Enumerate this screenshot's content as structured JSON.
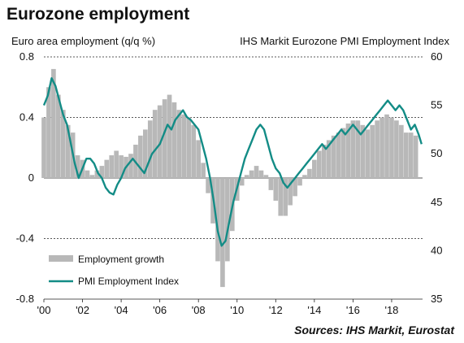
{
  "chart_data": {
    "type": "bar+line",
    "title": "Eurozone employment",
    "left_axis": {
      "label": "Euro area employment (q/q %)",
      "ylim": [
        -0.8,
        0.8
      ],
      "ticks": [
        "0.8",
        "0.4",
        "0",
        "-0.4",
        "-0.8"
      ]
    },
    "right_axis": {
      "label": "IHS Markit  Eurozone PMI Employment Index",
      "ylim": [
        35,
        60
      ],
      "ticks": [
        "60",
        "55",
        "50",
        "45",
        "40",
        "35"
      ]
    },
    "x_axis": {
      "range": [
        2000,
        2019.6
      ],
      "tick_labels": [
        "'00",
        "'02",
        "'04",
        "'06",
        "'08",
        "'10",
        "'12",
        "'14",
        "'16",
        "'18"
      ],
      "tick_years": [
        2000,
        2002,
        2004,
        2006,
        2008,
        2010,
        2012,
        2014,
        2016,
        2018
      ]
    },
    "grid": "horizontal-dashed",
    "legend_position": "bottom-left",
    "colors": {
      "bars": "#b8b8b8",
      "line": "#138c86"
    },
    "series": [
      {
        "name": "Employment growth",
        "kind": "bar",
        "axis": "left",
        "points": [
          [
            2000.0,
            0.4
          ],
          [
            2000.25,
            0.6
          ],
          [
            2000.5,
            0.72
          ],
          [
            2000.75,
            0.55
          ],
          [
            2001.0,
            0.45
          ],
          [
            2001.25,
            0.35
          ],
          [
            2001.5,
            0.3
          ],
          [
            2001.75,
            0.15
          ],
          [
            2002.0,
            0.12
          ],
          [
            2002.25,
            0.05
          ],
          [
            2002.5,
            0.02
          ],
          [
            2002.75,
            0.05
          ],
          [
            2003.0,
            0.08
          ],
          [
            2003.25,
            0.12
          ],
          [
            2003.5,
            0.15
          ],
          [
            2003.75,
            0.18
          ],
          [
            2004.0,
            0.15
          ],
          [
            2004.25,
            0.14
          ],
          [
            2004.5,
            0.16
          ],
          [
            2004.75,
            0.22
          ],
          [
            2005.0,
            0.28
          ],
          [
            2005.25,
            0.32
          ],
          [
            2005.5,
            0.38
          ],
          [
            2005.75,
            0.45
          ],
          [
            2006.0,
            0.48
          ],
          [
            2006.25,
            0.52
          ],
          [
            2006.5,
            0.55
          ],
          [
            2006.75,
            0.5
          ],
          [
            2007.0,
            0.45
          ],
          [
            2007.25,
            0.42
          ],
          [
            2007.5,
            0.4
          ],
          [
            2007.75,
            0.35
          ],
          [
            2008.0,
            0.25
          ],
          [
            2008.25,
            0.1
          ],
          [
            2008.5,
            -0.1
          ],
          [
            2008.75,
            -0.3
          ],
          [
            2009.0,
            -0.55
          ],
          [
            2009.25,
            -0.72
          ],
          [
            2009.5,
            -0.55
          ],
          [
            2009.75,
            -0.35
          ],
          [
            2010.0,
            -0.15
          ],
          [
            2010.25,
            -0.05
          ],
          [
            2010.5,
            0.02
          ],
          [
            2010.75,
            0.05
          ],
          [
            2011.0,
            0.08
          ],
          [
            2011.25,
            0.05
          ],
          [
            2011.5,
            0.02
          ],
          [
            2011.75,
            -0.08
          ],
          [
            2012.0,
            -0.15
          ],
          [
            2012.25,
            -0.25
          ],
          [
            2012.5,
            -0.25
          ],
          [
            2012.75,
            -0.18
          ],
          [
            2013.0,
            -0.12
          ],
          [
            2013.25,
            -0.05
          ],
          [
            2013.5,
            0.02
          ],
          [
            2013.75,
            0.06
          ],
          [
            2014.0,
            0.12
          ],
          [
            2014.25,
            0.18
          ],
          [
            2014.5,
            0.22
          ],
          [
            2014.75,
            0.25
          ],
          [
            2015.0,
            0.28
          ],
          [
            2015.25,
            0.3
          ],
          [
            2015.5,
            0.33
          ],
          [
            2015.75,
            0.36
          ],
          [
            2016.0,
            0.38
          ],
          [
            2016.25,
            0.38
          ],
          [
            2016.5,
            0.35
          ],
          [
            2016.75,
            0.32
          ],
          [
            2017.0,
            0.35
          ],
          [
            2017.25,
            0.38
          ],
          [
            2017.5,
            0.4
          ],
          [
            2017.75,
            0.42
          ],
          [
            2018.0,
            0.4
          ],
          [
            2018.25,
            0.38
          ],
          [
            2018.5,
            0.35
          ],
          [
            2018.75,
            0.3
          ],
          [
            2019.0,
            0.3
          ],
          [
            2019.25,
            0.28
          ]
        ]
      },
      {
        "name": "PMI Employment Index",
        "kind": "line",
        "axis": "right",
        "points": [
          [
            2000.0,
            55.0
          ],
          [
            2000.2,
            56.0
          ],
          [
            2000.4,
            57.8
          ],
          [
            2000.6,
            57.0
          ],
          [
            2000.8,
            55.5
          ],
          [
            2001.0,
            54.0
          ],
          [
            2001.2,
            53.0
          ],
          [
            2001.4,
            51.0
          ],
          [
            2001.6,
            49.0
          ],
          [
            2001.8,
            47.5
          ],
          [
            2002.0,
            48.5
          ],
          [
            2002.2,
            49.5
          ],
          [
            2002.4,
            49.5
          ],
          [
            2002.6,
            49.0
          ],
          [
            2002.8,
            48.0
          ],
          [
            2003.0,
            47.5
          ],
          [
            2003.2,
            46.5
          ],
          [
            2003.4,
            46.0
          ],
          [
            2003.6,
            45.8
          ],
          [
            2003.8,
            46.8
          ],
          [
            2004.0,
            47.5
          ],
          [
            2004.2,
            48.5
          ],
          [
            2004.4,
            49.0
          ],
          [
            2004.6,
            49.5
          ],
          [
            2004.8,
            49.0
          ],
          [
            2005.0,
            48.5
          ],
          [
            2005.2,
            48.0
          ],
          [
            2005.4,
            49.0
          ],
          [
            2005.6,
            50.0
          ],
          [
            2005.8,
            50.5
          ],
          [
            2006.0,
            51.0
          ],
          [
            2006.2,
            52.0
          ],
          [
            2006.4,
            53.0
          ],
          [
            2006.6,
            52.5
          ],
          [
            2006.8,
            53.5
          ],
          [
            2007.0,
            54.0
          ],
          [
            2007.2,
            54.5
          ],
          [
            2007.4,
            53.8
          ],
          [
            2007.6,
            53.5
          ],
          [
            2007.8,
            53.0
          ],
          [
            2008.0,
            52.5
          ],
          [
            2008.2,
            51.0
          ],
          [
            2008.4,
            49.5
          ],
          [
            2008.6,
            47.5
          ],
          [
            2008.8,
            45.0
          ],
          [
            2009.0,
            42.0
          ],
          [
            2009.2,
            40.5
          ],
          [
            2009.4,
            41.0
          ],
          [
            2009.6,
            43.0
          ],
          [
            2009.8,
            45.0
          ],
          [
            2010.0,
            46.5
          ],
          [
            2010.2,
            48.0
          ],
          [
            2010.4,
            49.5
          ],
          [
            2010.6,
            50.5
          ],
          [
            2010.8,
            51.5
          ],
          [
            2011.0,
            52.5
          ],
          [
            2011.2,
            53.0
          ],
          [
            2011.4,
            52.5
          ],
          [
            2011.6,
            51.0
          ],
          [
            2011.8,
            49.5
          ],
          [
            2012.0,
            48.5
          ],
          [
            2012.2,
            48.0
          ],
          [
            2012.4,
            47.0
          ],
          [
            2012.6,
            46.5
          ],
          [
            2012.8,
            47.0
          ],
          [
            2013.0,
            47.5
          ],
          [
            2013.2,
            48.0
          ],
          [
            2013.4,
            48.5
          ],
          [
            2013.6,
            49.0
          ],
          [
            2013.8,
            49.5
          ],
          [
            2014.0,
            50.0
          ],
          [
            2014.2,
            50.5
          ],
          [
            2014.4,
            51.0
          ],
          [
            2014.6,
            50.5
          ],
          [
            2014.8,
            51.0
          ],
          [
            2015.0,
            51.5
          ],
          [
            2015.2,
            52.0
          ],
          [
            2015.4,
            52.5
          ],
          [
            2015.6,
            52.0
          ],
          [
            2015.8,
            52.5
          ],
          [
            2016.0,
            53.0
          ],
          [
            2016.2,
            52.5
          ],
          [
            2016.4,
            52.0
          ],
          [
            2016.6,
            52.5
          ],
          [
            2016.8,
            53.0
          ],
          [
            2017.0,
            53.5
          ],
          [
            2017.2,
            54.0
          ],
          [
            2017.4,
            54.5
          ],
          [
            2017.6,
            55.0
          ],
          [
            2017.8,
            55.5
          ],
          [
            2018.0,
            55.0
          ],
          [
            2018.2,
            54.5
          ],
          [
            2018.4,
            55.0
          ],
          [
            2018.6,
            54.5
          ],
          [
            2018.8,
            53.5
          ],
          [
            2019.0,
            52.5
          ],
          [
            2019.2,
            53.0
          ],
          [
            2019.4,
            52.0
          ],
          [
            2019.55,
            51.0
          ]
        ]
      }
    ],
    "source": "Sources: IHS Markit, Eurostat"
  }
}
